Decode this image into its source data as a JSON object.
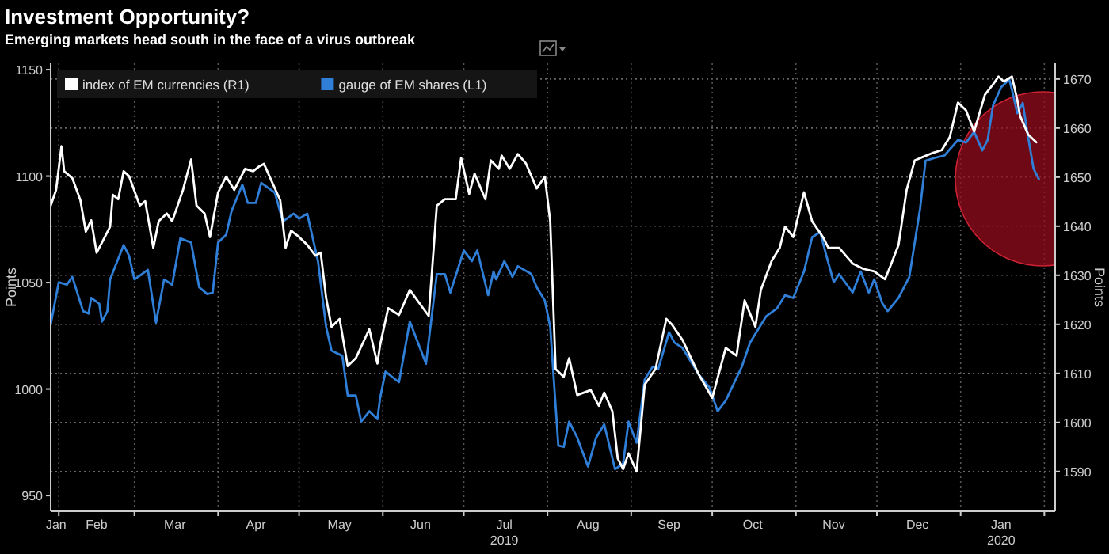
{
  "chart_data": {
    "type": "line",
    "title": "Investment Opportunity?",
    "subtitle": "Emerging markets head south in the face of a virus outbreak",
    "ylabel": "Points",
    "y2label": "Points",
    "xlim": [
      "2019-01-29",
      "2020-02-05"
    ],
    "ylim": [
      942.6,
      1153
    ],
    "y2lim": [
      1581.9,
      1673.2
    ],
    "yticks": [
      950,
      1000,
      1050,
      1100,
      1150
    ],
    "y2ticks": [
      1590,
      1600,
      1610,
      1620,
      1630,
      1640,
      1650,
      1660,
      1670
    ],
    "xticks": [
      {
        "value": "2019-01-31",
        "label": "Jan"
      },
      {
        "value": "2019-02-15",
        "label": "Feb"
      },
      {
        "value": "2019-03-16",
        "label": "Mar"
      },
      {
        "value": "2019-04-15",
        "label": "Apr"
      },
      {
        "value": "2019-05-16",
        "label": "May"
      },
      {
        "value": "2019-06-15",
        "label": "Jun"
      },
      {
        "value": "2019-07-16",
        "label": "Jul\n2019"
      },
      {
        "value": "2019-08-16",
        "label": "Aug"
      },
      {
        "value": "2019-09-15",
        "label": "Sep"
      },
      {
        "value": "2019-10-16",
        "label": "Oct"
      },
      {
        "value": "2019-11-15",
        "label": "Nov"
      },
      {
        "value": "2019-12-16",
        "label": "Dec"
      },
      {
        "value": "2020-01-16",
        "label": "Jan\n2020"
      },
      {
        "value": "2019-02-01",
        "label": null
      },
      {
        "value": "2019-03-01",
        "label": null
      },
      {
        "value": "2019-04-01",
        "label": null
      },
      {
        "value": "2019-05-01",
        "label": null
      },
      {
        "value": "2019-06-01",
        "label": null
      },
      {
        "value": "2019-07-01",
        "label": null
      },
      {
        "value": "2019-08-01",
        "label": null
      },
      {
        "value": "2019-09-01",
        "label": null
      },
      {
        "value": "2019-10-01",
        "label": null
      },
      {
        "value": "2019-11-01",
        "label": null
      },
      {
        "value": "2019-12-01",
        "label": null
      },
      {
        "value": "2020-01-01",
        "label": null
      },
      {
        "value": "2020-02-01",
        "label": null
      }
    ],
    "grid": true,
    "legend": "top left",
    "series": [
      {
        "name": "index of EM currencies (R1)",
        "color": "#ffffff",
        "axis": "y2",
        "x": [
          "2019-01-29",
          "2019-01-31",
          "2019-02-02",
          "2019-02-03",
          "2019-02-06",
          "2019-02-09",
          "2019-02-11",
          "2019-02-13",
          "2019-02-15",
          "2019-02-17",
          "2019-02-20",
          "2019-02-21",
          "2019-02-23",
          "2019-02-25",
          "2019-02-27",
          "2019-03-03",
          "2019-03-05",
          "2019-03-08",
          "2019-03-10",
          "2019-03-13",
          "2019-03-15",
          "2019-03-19",
          "2019-03-22",
          "2019-03-24",
          "2019-03-27",
          "2019-03-29",
          "2019-04-01",
          "2019-04-04",
          "2019-04-07",
          "2019-04-11",
          "2019-04-14",
          "2019-04-16",
          "2019-04-18",
          "2019-04-20",
          "2019-04-24",
          "2019-04-26",
          "2019-04-28",
          "2019-05-01",
          "2019-05-04",
          "2019-05-07",
          "2019-05-09",
          "2019-05-11",
          "2019-05-13",
          "2019-05-16",
          "2019-05-19",
          "2019-05-22",
          "2019-05-27",
          "2019-05-30",
          "2019-05-31",
          "2019-06-03",
          "2019-06-07",
          "2019-06-11",
          "2019-06-18",
          "2019-06-21",
          "2019-06-24",
          "2019-06-28",
          "2019-06-30",
          "2019-07-03",
          "2019-07-05",
          "2019-07-09",
          "2019-07-11",
          "2019-07-14",
          "2019-07-15",
          "2019-07-18",
          "2019-07-21",
          "2019-07-24",
          "2019-07-28",
          "2019-07-31",
          "2019-08-02",
          "2019-08-04",
          "2019-08-07",
          "2019-08-09",
          "2019-08-12",
          "2019-08-17",
          "2019-08-20",
          "2019-08-22",
          "2019-08-25",
          "2019-08-27",
          "2019-08-29",
          "2019-08-31",
          "2019-09-03",
          "2019-09-06",
          "2019-09-10",
          "2019-09-14",
          "2019-09-16",
          "2019-09-20",
          "2019-09-26",
          "2019-10-01",
          "2019-10-06",
          "2019-10-10",
          "2019-10-13",
          "2019-10-17",
          "2019-10-19",
          "2019-10-23",
          "2019-10-26",
          "2019-10-28",
          "2019-10-31",
          "2019-11-04",
          "2019-11-07",
          "2019-11-11",
          "2019-11-13",
          "2019-11-17",
          "2019-11-22",
          "2019-11-26",
          "2019-11-30",
          "2019-12-04",
          "2019-12-06",
          "2019-12-09",
          "2019-12-12",
          "2019-12-15",
          "2019-12-18",
          "2019-12-22",
          "2019-12-25",
          "2019-12-28",
          "2019-12-31",
          "2020-01-03",
          "2020-01-06",
          "2020-01-10",
          "2020-01-13",
          "2020-01-15",
          "2020-01-17",
          "2020-01-20",
          "2020-01-22",
          "2020-01-23",
          "2020-01-26",
          "2020-01-29"
        ],
        "values": [
          1644.2,
          1647.4,
          1656.3,
          1651.2,
          1649.8,
          1645.3,
          1638.9,
          1641.2,
          1634.6,
          1636.7,
          1639.9,
          1646.4,
          1645.5,
          1651.2,
          1650.2,
          1644.2,
          1645.1,
          1635.6,
          1641,
          1642.6,
          1641,
          1647.4,
          1653.6,
          1644.2,
          1642.6,
          1637.8,
          1646.9,
          1650.1,
          1647.4,
          1651.7,
          1651.2,
          1652.1,
          1652.7,
          1650.2,
          1645.3,
          1635.6,
          1639.1,
          1637.8,
          1636.2,
          1634,
          1634.6,
          1625.4,
          1619.5,
          1621.1,
          1611.5,
          1613.1,
          1619,
          1612,
          1615.8,
          1623.3,
          1621.9,
          1627,
          1621.7,
          1644.2,
          1645.5,
          1645.5,
          1653.9,
          1646.6,
          1650.7,
          1645.5,
          1653.4,
          1651.7,
          1654.4,
          1651.7,
          1654.7,
          1652.8,
          1647.7,
          1650.1,
          1641,
          1610.9,
          1609.3,
          1613.1,
          1605.6,
          1606.6,
          1603.4,
          1606.1,
          1602.3,
          1592.7,
          1590.5,
          1593.7,
          1590,
          1607.7,
          1610.9,
          1621.1,
          1620,
          1616.8,
          1609.8,
          1605,
          1615.2,
          1613.6,
          1624.9,
          1619.5,
          1627,
          1632.9,
          1635.6,
          1639.9,
          1637.8,
          1646.9,
          1641,
          1637.8,
          1635.6,
          1635.6,
          1632.4,
          1631.3,
          1630.8,
          1629.2,
          1631.9,
          1636.2,
          1647.4,
          1653.4,
          1654.1,
          1655,
          1655.5,
          1658.2,
          1665.2,
          1663.6,
          1659.3,
          1666.8,
          1668.9,
          1670.5,
          1669.5,
          1670.5,
          1665.7,
          1662.5,
          1658.7,
          1657.1
        ]
      },
      {
        "name": "gauge of EM shares (L1)",
        "color": "#2f7fd8",
        "x": [
          "2019-01-29",
          "2019-02-01",
          "2019-02-04",
          "2019-02-06",
          "2019-02-10",
          "2019-02-12",
          "2019-02-13",
          "2019-02-16",
          "2019-02-17",
          "2019-02-19",
          "2019-02-20",
          "2019-02-25",
          "2019-02-27",
          "2019-03-01",
          "2019-03-06",
          "2019-03-09",
          "2019-03-12",
          "2019-03-15",
          "2019-03-18",
          "2019-03-22",
          "2019-03-25",
          "2019-03-28",
          "2019-03-30",
          "2019-04-01",
          "2019-04-04",
          "2019-04-06",
          "2019-04-10",
          "2019-04-12",
          "2019-04-15",
          "2019-04-17",
          "2019-04-22",
          "2019-04-25",
          "2019-04-29",
          "2019-05-01",
          "2019-05-04",
          "2019-05-08",
          "2019-05-11",
          "2019-05-13",
          "2019-05-17",
          "2019-05-19",
          "2019-05-22",
          "2019-05-24",
          "2019-05-27",
          "2019-05-30",
          "2019-05-31",
          "2019-06-02",
          "2019-06-07",
          "2019-06-11",
          "2019-06-17",
          "2019-06-21",
          "2019-06-24",
          "2019-06-26",
          "2019-07-01",
          "2019-07-04",
          "2019-07-06",
          "2019-07-10",
          "2019-07-12",
          "2019-07-13",
          "2019-07-16",
          "2019-07-19",
          "2019-07-21",
          "2019-07-26",
          "2019-07-28",
          "2019-07-31",
          "2019-08-02",
          "2019-08-05",
          "2019-08-07",
          "2019-08-09",
          "2019-08-12",
          "2019-08-16",
          "2019-08-19",
          "2019-08-22",
          "2019-08-26",
          "2019-08-29",
          "2019-08-31",
          "2019-09-03",
          "2019-09-06",
          "2019-09-09",
          "2019-09-11",
          "2019-09-15",
          "2019-09-17",
          "2019-09-20",
          "2019-09-26",
          "2019-09-30",
          "2019-10-03",
          "2019-10-06",
          "2019-10-12",
          "2019-10-15",
          "2019-10-18",
          "2019-10-21",
          "2019-10-25",
          "2019-10-28",
          "2019-10-31",
          "2019-11-04",
          "2019-11-07",
          "2019-11-10",
          "2019-11-12",
          "2019-11-15",
          "2019-11-17",
          "2019-11-22",
          "2019-11-25",
          "2019-11-28",
          "2019-11-30",
          "2019-12-03",
          "2019-12-05",
          "2019-12-09",
          "2019-12-13",
          "2019-12-17",
          "2019-12-19",
          "2019-12-22",
          "2019-12-26",
          "2019-12-31",
          "2020-01-03",
          "2020-01-06",
          "2020-01-09",
          "2020-01-11",
          "2020-01-13",
          "2020-01-16",
          "2020-01-19",
          "2020-01-20",
          "2020-01-22",
          "2020-01-24",
          "2020-01-26",
          "2020-01-28",
          "2020-01-30"
        ],
        "values": [
          1030.4,
          1050.2,
          1049,
          1052.7,
          1036.6,
          1035.4,
          1042.8,
          1040,
          1031.7,
          1036.6,
          1051.5,
          1067.6,
          1062.6,
          1051.5,
          1056,
          1031.2,
          1051.5,
          1049,
          1070.8,
          1068.8,
          1047.8,
          1044.6,
          1045.3,
          1068.8,
          1072.5,
          1083.7,
          1096,
          1087.4,
          1087.4,
          1096.8,
          1092.3,
          1078.7,
          1082.4,
          1080,
          1082.4,
          1060,
          1029.2,
          1018.1,
          1015.6,
          997,
          997,
          984.7,
          989.6,
          985.9,
          995.8,
          1008.2,
          1003.2,
          1031.7,
          1011.9,
          1054,
          1054,
          1045.3,
          1065.1,
          1060.1,
          1065.1,
          1044.1,
          1055.2,
          1051.5,
          1060.1,
          1052.7,
          1057.7,
          1054,
          1047.8,
          1041.6,
          1029.2,
          973.5,
          972.8,
          984.7,
          977.2,
          963.6,
          977.2,
          983.4,
          962.4,
          964.9,
          984.7,
          974.8,
          1004.5,
          1010.6,
          1009.4,
          1026.7,
          1021.8,
          1019.3,
          1006.9,
          1000.7,
          989.6,
          994.6,
          1010.6,
          1021.8,
          1028,
          1034.2,
          1037.9,
          1044.1,
          1042.8,
          1055.2,
          1071.3,
          1073.8,
          1063.9,
          1050.2,
          1054,
          1045.3,
          1055.2,
          1045.3,
          1051.5,
          1040.3,
          1036.6,
          1042.8,
          1052.7,
          1084.9,
          1107.2,
          1108.4,
          1109.7,
          1117,
          1115.8,
          1120.8,
          1112.1,
          1117,
          1133.2,
          1141.8,
          1145.5,
          1140.6,
          1129.5,
          1134.4,
          1118.3,
          1103.5,
          1098.5
        ]
      }
    ]
  }
}
